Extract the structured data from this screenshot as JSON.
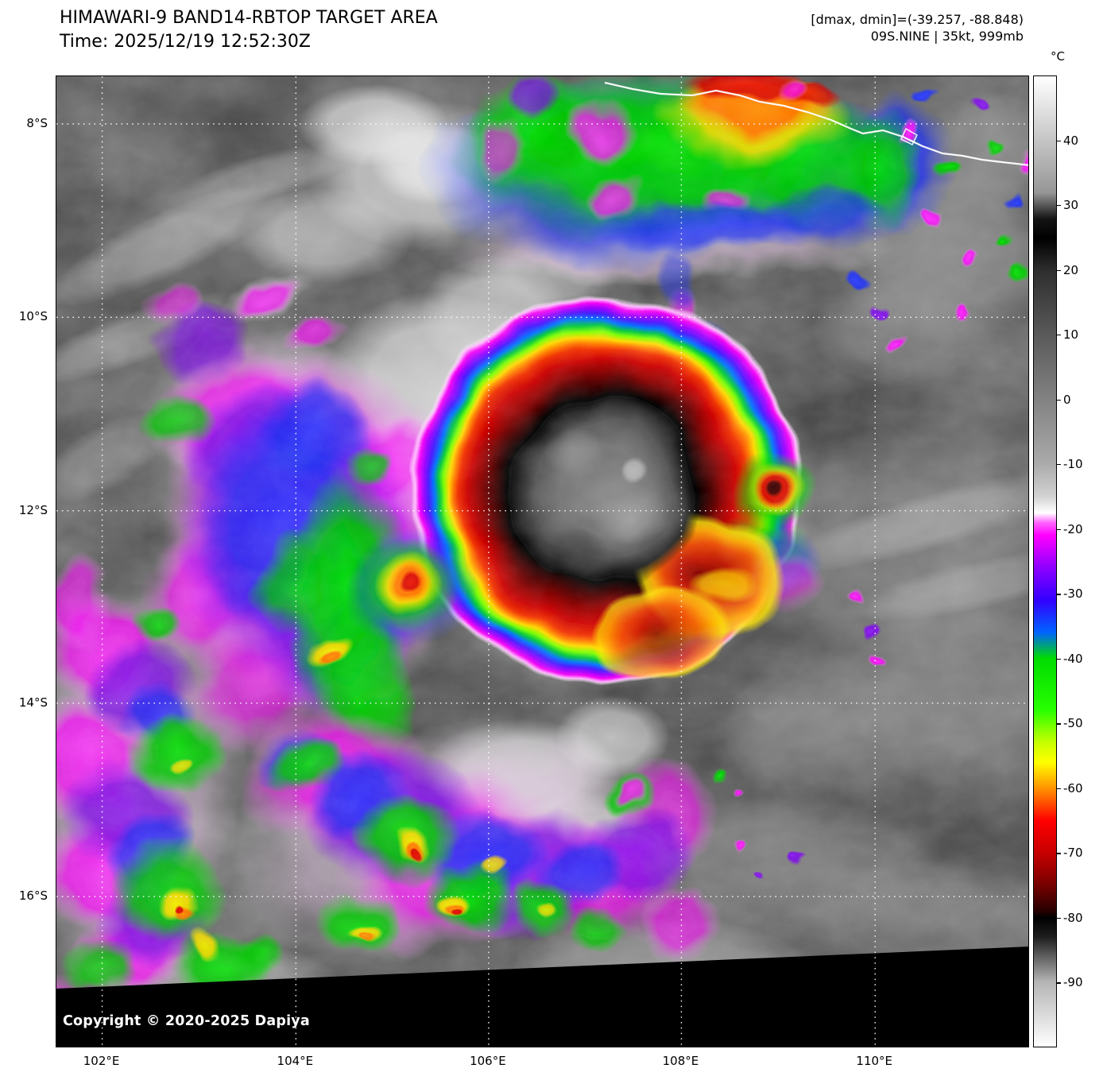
{
  "header": {
    "title": "HIMAWARI-9 BAND14-RBTOP TARGET AREA",
    "time": "Time: 2025/12/19 12:52:30Z",
    "stats": "[dmax, dmin]=(-39.257, -88.848)",
    "storm": "09S.NINE | 35kt, 999mb"
  },
  "colorbar": {
    "unit_label": "°C",
    "domain": [
      50,
      -100
    ],
    "ticks": [
      40,
      30,
      20,
      10,
      0,
      -10,
      -20,
      -30,
      -40,
      -50,
      -60,
      -70,
      -80,
      -90
    ],
    "stops": [
      {
        "p": 0.0,
        "c": "#ffffff"
      },
      {
        "p": 0.12,
        "c": "#969696"
      },
      {
        "p": 0.147,
        "c": "#141414"
      },
      {
        "p": 0.167,
        "c": "#000000"
      },
      {
        "p": 0.2,
        "c": "#2e2e2e"
      },
      {
        "p": 0.267,
        "c": "#5a5a5a"
      },
      {
        "p": 0.333,
        "c": "#828282"
      },
      {
        "p": 0.4,
        "c": "#ababab"
      },
      {
        "p": 0.433,
        "c": "#d2d2d2"
      },
      {
        "p": 0.45,
        "c": "#ffffff"
      },
      {
        "p": 0.46,
        "c": "#ff64ff"
      },
      {
        "p": 0.473,
        "c": "#ff00ff"
      },
      {
        "p": 0.507,
        "c": "#8c00ff"
      },
      {
        "p": 0.54,
        "c": "#3200ff"
      },
      {
        "p": 0.573,
        "c": "#0064ff"
      },
      {
        "p": 0.6,
        "c": "#00dc00"
      },
      {
        "p": 0.653,
        "c": "#28ff00"
      },
      {
        "p": 0.687,
        "c": "#c8ff00"
      },
      {
        "p": 0.707,
        "c": "#ffff00"
      },
      {
        "p": 0.733,
        "c": "#ff9600"
      },
      {
        "p": 0.767,
        "c": "#ff0000"
      },
      {
        "p": 0.8,
        "c": "#c80000"
      },
      {
        "p": 0.833,
        "c": "#780000"
      },
      {
        "p": 0.86,
        "c": "#280000"
      },
      {
        "p": 0.867,
        "c": "#000000"
      },
      {
        "p": 0.887,
        "c": "#1e1e1e"
      },
      {
        "p": 0.933,
        "c": "#b4b4b4"
      },
      {
        "p": 1.0,
        "c": "#ffffff"
      }
    ]
  },
  "axes": {
    "lat": [
      {
        "label": "8°S",
        "f": 0.049
      },
      {
        "label": "10°S",
        "f": 0.248
      },
      {
        "label": "12°S",
        "f": 0.447
      },
      {
        "label": "14°S",
        "f": 0.645
      },
      {
        "label": "16°S",
        "f": 0.844
      }
    ],
    "lon": [
      {
        "label": "102°E",
        "f": 0.047
      },
      {
        "label": "104°E",
        "f": 0.246
      },
      {
        "label": "106°E",
        "f": 0.444
      },
      {
        "label": "108°E",
        "f": 0.642
      },
      {
        "label": "110°E",
        "f": 0.841
      }
    ]
  },
  "map": {
    "copyright": "Copyright © 2020-2025 Dapiya"
  }
}
